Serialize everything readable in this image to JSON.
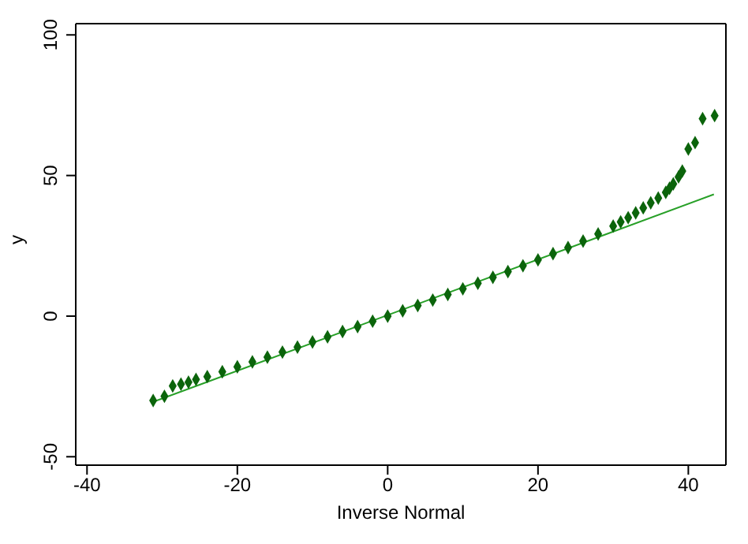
{
  "chart_data": {
    "type": "scatter",
    "xlabel": "Inverse Normal",
    "ylabel": "y",
    "xlim": [
      -41.5,
      45
    ],
    "ylim": [
      -53,
      104
    ],
    "xticks": [
      -40,
      -20,
      0,
      20,
      40
    ],
    "yticks": [
      -50,
      0,
      50,
      100
    ],
    "grid": false,
    "series": [
      {
        "marker": "diamond",
        "color": "#0b640b",
        "x": [
          -31.2,
          -29.7,
          -28.6,
          -27.5,
          -26.5,
          -25.5,
          -24,
          -22,
          -20,
          -18,
          -16,
          -14,
          -12,
          -10,
          -8,
          -6,
          -4,
          -2,
          0,
          2,
          4,
          6,
          8,
          10,
          12,
          14,
          16,
          18,
          20,
          22,
          24,
          26,
          28,
          30,
          31,
          32,
          33,
          34,
          35,
          36,
          37,
          37.5,
          38,
          38.7,
          39.2,
          40,
          40.9,
          41.9,
          43.5
        ],
        "values": [
          -30,
          -28.5,
          -24.8,
          -24.2,
          -23.5,
          -22.5,
          -21.5,
          -19.8,
          -18,
          -16.3,
          -14.6,
          -12.8,
          -11,
          -9.2,
          -7.4,
          -5.5,
          -3.7,
          -1.8,
          0,
          1.9,
          3.8,
          5.7,
          7.7,
          9.7,
          11.7,
          13.8,
          15.8,
          17.9,
          20,
          22.2,
          24.4,
          26.7,
          29.2,
          32,
          33.5,
          35,
          36.7,
          38.5,
          40.3,
          42,
          44,
          45.5,
          47,
          49.5,
          51.6,
          59.4,
          61.7,
          70.2,
          71.3
        ]
      },
      {
        "type": "line",
        "marker": "none",
        "line_style": "solid",
        "color": "#28a028",
        "x": [
          -31.2,
          43.4
        ],
        "values": [
          -30.5,
          43.3
        ]
      }
    ]
  }
}
